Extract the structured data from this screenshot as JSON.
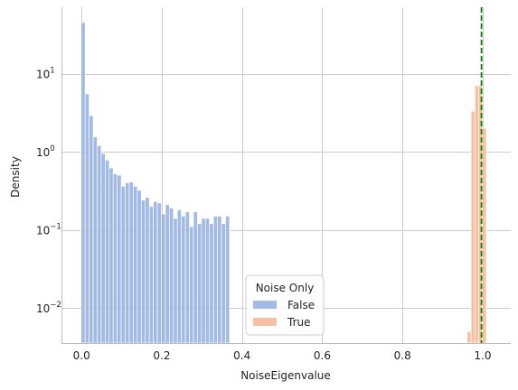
{
  "chart_data": {
    "type": "bar",
    "title": "",
    "xlabel": "NoiseEigenvalue",
    "ylabel": "Density",
    "xlim": [
      -0.05,
      1.07
    ],
    "ylim_log10": [
      -2.45,
      1.85
    ],
    "yscale": "log",
    "grid": true,
    "x_ticks": [
      {
        "value": 0.0,
        "label": "0.0"
      },
      {
        "value": 0.2,
        "label": "0.2"
      },
      {
        "value": 0.4,
        "label": "0.4"
      },
      {
        "value": 0.6,
        "label": "0.6"
      },
      {
        "value": 0.8,
        "label": "0.8"
      },
      {
        "value": 1.0,
        "label": "1.0"
      }
    ],
    "y_ticks": [
      {
        "exp": 1,
        "base": "10",
        "sup": "1"
      },
      {
        "exp": 0,
        "base": "10",
        "sup": "0"
      },
      {
        "exp": -1,
        "base": "10",
        "sup": "−1"
      },
      {
        "exp": -2,
        "base": "10",
        "sup": "−2"
      }
    ],
    "reference_line": {
      "x": 0.997,
      "color": "#008000",
      "style": "dashed"
    },
    "legend": {
      "title": "Noise Only",
      "placement": "lower-center",
      "entries": [
        "False",
        "True"
      ]
    },
    "series": [
      {
        "name": "False",
        "color": "#92aee2",
        "bin_width": 0.01,
        "bin_start": -0.001,
        "values": [
          45,
          5.5,
          2.9,
          1.55,
          1.2,
          0.95,
          0.78,
          0.62,
          0.52,
          0.5,
          0.36,
          0.4,
          0.41,
          0.36,
          0.32,
          0.24,
          0.26,
          0.2,
          0.23,
          0.22,
          0.16,
          0.21,
          0.19,
          0.14,
          0.18,
          0.15,
          0.17,
          0.11,
          0.17,
          0.12,
          0.14,
          0.14,
          0.12,
          0.15,
          0.15,
          0.12,
          0.15
        ]
      },
      {
        "name": "True",
        "color": "#f6b58f",
        "bin_width": 0.0095,
        "bin_start": 0.9615,
        "values": [
          0.005,
          3.3,
          7.0,
          7.0,
          2.0
        ]
      }
    ]
  }
}
